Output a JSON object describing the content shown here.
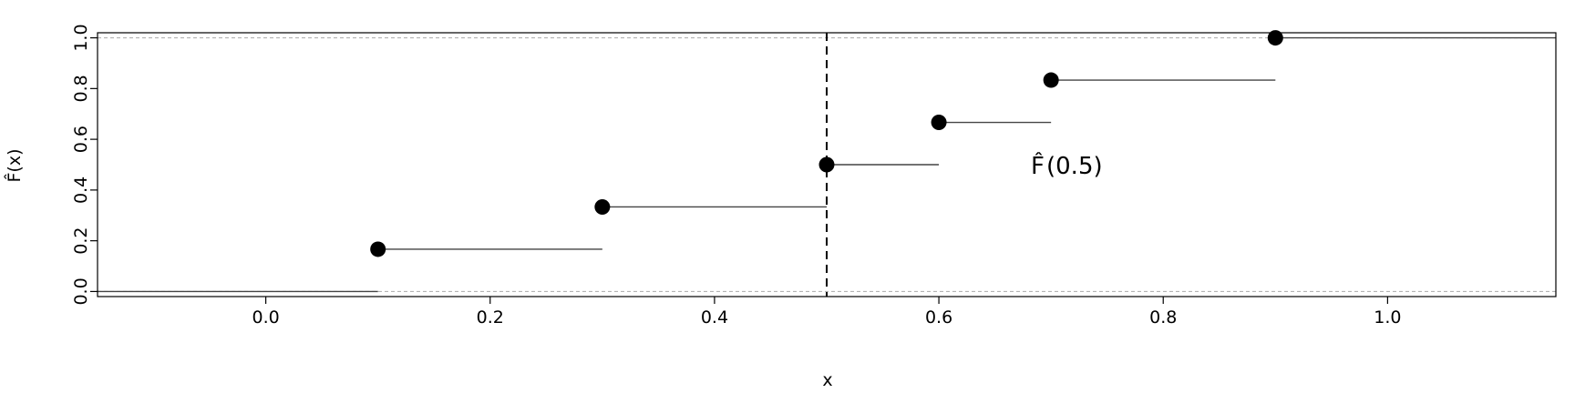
{
  "chart_data": {
    "type": "step",
    "title": "",
    "xlabel": "x",
    "ylabel": "F̂(x)",
    "xlim": [
      -0.15,
      1.15
    ],
    "ylim": [
      -0.02,
      1.02
    ],
    "x_ticks": [
      0.0,
      0.2,
      0.4,
      0.6,
      0.8,
      1.0
    ],
    "x_tick_labels": [
      "0.0",
      "0.2",
      "0.4",
      "0.6",
      "0.8",
      "1.0"
    ],
    "y_ticks": [
      0.0,
      0.2,
      0.4,
      0.6,
      0.8,
      1.0
    ],
    "y_tick_labels": [
      "0.0",
      "0.2",
      "0.4",
      "0.6",
      "0.8",
      "1.0"
    ],
    "reference_lines_y": [
      0.0,
      1.0
    ],
    "vertical_line_x": 0.5,
    "steps": [
      {
        "x_start": -0.15,
        "x_end": 0.1,
        "y": 0.0,
        "point": false
      },
      {
        "x_start": 0.1,
        "x_end": 0.3,
        "y": 0.1667,
        "point": true
      },
      {
        "x_start": 0.3,
        "x_end": 0.5,
        "y": 0.3333,
        "point": true
      },
      {
        "x_start": 0.5,
        "x_end": 0.6,
        "y": 0.5,
        "point": true
      },
      {
        "x_start": 0.6,
        "x_end": 0.7,
        "y": 0.6667,
        "point": true
      },
      {
        "x_start": 0.7,
        "x_end": 0.9,
        "y": 0.8333,
        "point": true
      },
      {
        "x_start": 0.9,
        "x_end": 1.15,
        "y": 1.0,
        "point": true
      }
    ],
    "annotation": {
      "text_hat": "F̂",
      "text_arg": "(0.5)",
      "x": 0.682,
      "y": 0.5
    }
  }
}
